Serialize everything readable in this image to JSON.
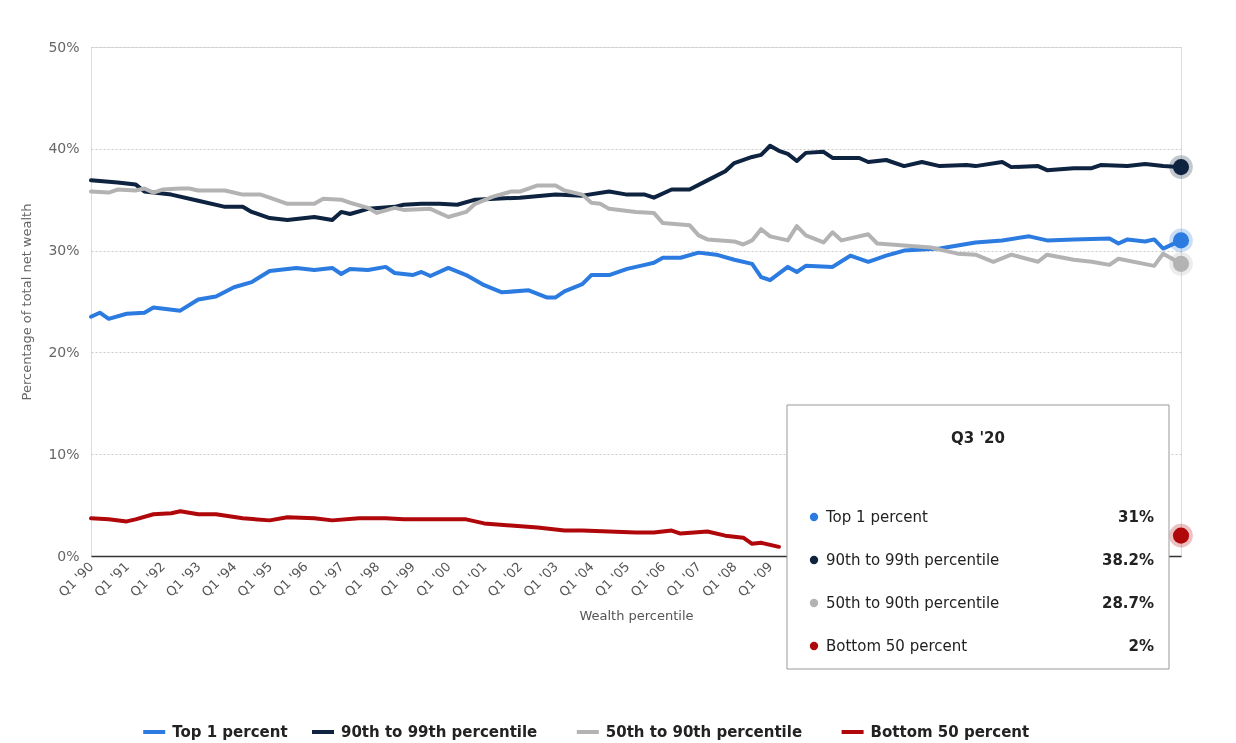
{
  "chart_data": {
    "type": "line",
    "xlabel": "Wealth percentile",
    "ylabel": "Percentage of total net wealth",
    "grid": "y",
    "legend": "bottom",
    "line_style": "solid",
    "xlim": [
      "1990-01",
      "2020-07"
    ],
    "xticks": [
      {
        "value": "1990-01",
        "label": "Q1 '90"
      },
      {
        "value": "1991-01",
        "label": "Q1 '91"
      },
      {
        "value": "1992-01",
        "label": "Q1 '92"
      },
      {
        "value": "1993-01",
        "label": "Q1 '93"
      },
      {
        "value": "1994-01",
        "label": "Q1 '94"
      },
      {
        "value": "1995-01",
        "label": "Q1 '95"
      },
      {
        "value": "1996-01",
        "label": "Q1 '96"
      },
      {
        "value": "1997-01",
        "label": "Q1 '97"
      },
      {
        "value": "1998-01",
        "label": "Q1 '98"
      },
      {
        "value": "1999-01",
        "label": "Q1 '99"
      },
      {
        "value": "2000-01",
        "label": "Q1 '00"
      },
      {
        "value": "2001-01",
        "label": "Q1 '01"
      },
      {
        "value": "2002-01",
        "label": "Q1 '02"
      },
      {
        "value": "2003-01",
        "label": "Q1 '03"
      },
      {
        "value": "2004-01",
        "label": "Q1 '04"
      },
      {
        "value": "2005-01",
        "label": "Q1 '05"
      },
      {
        "value": "2006-01",
        "label": "Q1 '06"
      },
      {
        "value": "2007-01",
        "label": "Q1 '07"
      },
      {
        "value": "2008-01",
        "label": "Q1 '08"
      },
      {
        "value": "2009-01",
        "label": "Q1 '09"
      }
    ],
    "ylim": [
      0,
      50
    ],
    "yticks": [
      {
        "value": 0,
        "label": "0%"
      },
      {
        "value": 10,
        "label": "10%"
      },
      {
        "value": 20,
        "label": "20%"
      },
      {
        "value": 30,
        "label": "30%"
      },
      {
        "value": 40,
        "label": "40%"
      },
      {
        "value": 50,
        "label": "50%"
      }
    ],
    "series": [
      {
        "name": "Top 1 percent",
        "color": "#2b7be0",
        "x": [
          "1990-01",
          "1990-04",
          "1990-07",
          "1991-01",
          "1991-07",
          "1991-10",
          "1992-07",
          "1993-01",
          "1993-07",
          "1994-01",
          "1994-07",
          "1995-01",
          "1995-04",
          "1995-10",
          "1996-04",
          "1996-10",
          "1997-01",
          "1997-04",
          "1997-10",
          "1998-04",
          "1998-07",
          "1999-01",
          "1999-04",
          "1999-07",
          "2000-01",
          "2000-07",
          "2001-01",
          "2001-07",
          "2002-04",
          "2002-10",
          "2003-01",
          "2003-04",
          "2003-10",
          "2004-01",
          "2004-07",
          "2005-01",
          "2005-07",
          "2005-10",
          "2006-01",
          "2006-07",
          "2007-01",
          "2007-07",
          "2008-01",
          "2008-07",
          "2008-10",
          "2009-01",
          "2009-07",
          "2009-10",
          "2010-01",
          "2010-10",
          "2011-04",
          "2011-10",
          "2012-04",
          "2012-10",
          "2013-10",
          "2014-10",
          "2015-07",
          "2016-04",
          "2016-10",
          "2017-07",
          "2018-07",
          "2018-10",
          "2019-01",
          "2019-07",
          "2019-10",
          "2020-01",
          "2020-07"
        ],
        "values": [
          23.5,
          23.9,
          23.3,
          23.8,
          23.9,
          24.4,
          24.1,
          25.2,
          25.5,
          26.4,
          26.9,
          28.0,
          28.1,
          28.3,
          28.1,
          28.3,
          27.7,
          28.2,
          28.1,
          28.4,
          27.8,
          27.6,
          27.9,
          27.5,
          28.3,
          27.6,
          26.6,
          25.9,
          26.1,
          25.4,
          25.4,
          26.0,
          26.7,
          27.6,
          27.6,
          28.2,
          28.6,
          28.8,
          29.3,
          29.3,
          29.8,
          29.6,
          29.1,
          28.7,
          27.4,
          27.1,
          28.4,
          27.9,
          28.5,
          28.4,
          29.5,
          28.9,
          29.5,
          30.0,
          30.2,
          30.8,
          31.0,
          31.4,
          31.0,
          31.1,
          31.2,
          30.7,
          31.1,
          30.9,
          31.1,
          30.2,
          31.0
        ]
      },
      {
        "name": "90th to 99th percentile",
        "color": "#0e2340",
        "x": [
          "1990-01",
          "1990-10",
          "1991-04",
          "1991-07",
          "1992-04",
          "1993-01",
          "1993-10",
          "1994-04",
          "1994-07",
          "1995-01",
          "1995-07",
          "1996-04",
          "1996-10",
          "1997-01",
          "1997-04",
          "1997-10",
          "1998-07",
          "1998-10",
          "1999-04",
          "1999-10",
          "2000-04",
          "2000-10",
          "2002-01",
          "2003-01",
          "2003-10",
          "2004-07",
          "2005-01",
          "2005-07",
          "2005-10",
          "2006-04",
          "2006-10",
          "2007-04",
          "2007-10",
          "2008-01",
          "2008-07",
          "2008-10",
          "2009-01",
          "2009-04",
          "2009-07",
          "2009-10",
          "2010-01",
          "2010-07",
          "2010-10",
          "2011-07",
          "2011-10",
          "2012-04",
          "2012-10",
          "2013-04",
          "2013-10",
          "2014-07",
          "2014-10",
          "2015-07",
          "2015-10",
          "2016-07",
          "2016-10",
          "2017-07",
          "2018-01",
          "2018-04",
          "2019-01",
          "2019-07",
          "2020-01",
          "2020-07"
        ],
        "values": [
          36.9,
          36.7,
          36.5,
          35.8,
          35.5,
          34.9,
          34.3,
          34.3,
          33.8,
          33.2,
          33.0,
          33.3,
          33.0,
          33.8,
          33.6,
          34.1,
          34.3,
          34.5,
          34.6,
          34.6,
          34.5,
          35.0,
          35.2,
          35.5,
          35.4,
          35.8,
          35.5,
          35.5,
          35.2,
          36.0,
          36.0,
          36.9,
          37.8,
          38.6,
          39.2,
          39.4,
          40.3,
          39.8,
          39.5,
          38.8,
          39.6,
          39.7,
          39.1,
          39.1,
          38.7,
          38.9,
          38.3,
          38.7,
          38.3,
          38.4,
          38.3,
          38.7,
          38.2,
          38.3,
          37.9,
          38.1,
          38.1,
          38.4,
          38.3,
          38.5,
          38.3,
          38.2
        ]
      },
      {
        "name": "50th to 90th percentile",
        "color": "#b3b3b3",
        "x": [
          "1990-01",
          "1990-07",
          "1990-10",
          "1991-04",
          "1991-07",
          "1991-10",
          "1992-01",
          "1992-07",
          "1992-10",
          "1993-01",
          "1993-10",
          "1994-04",
          "1994-10",
          "1995-01",
          "1995-07",
          "1996-04",
          "1996-07",
          "1997-01",
          "1997-04",
          "1997-10",
          "1998-01",
          "1998-07",
          "1998-10",
          "1999-07",
          "2000-01",
          "2000-07",
          "2000-10",
          "2001-04",
          "2001-10",
          "2002-01",
          "2002-07",
          "2003-01",
          "2003-04",
          "2003-10",
          "2004-01",
          "2004-04",
          "2004-07",
          "2005-04",
          "2005-10",
          "2006-01",
          "2006-10",
          "2007-01",
          "2007-04",
          "2008-01",
          "2008-04",
          "2008-07",
          "2008-10",
          "2009-01",
          "2009-07",
          "2009-10",
          "2010-01",
          "2010-07",
          "2010-10",
          "2011-01",
          "2011-10",
          "2012-01",
          "2012-10",
          "2013-07",
          "2014-04",
          "2014-10",
          "2015-04",
          "2015-10",
          "2016-07",
          "2016-10",
          "2017-07",
          "2018-01",
          "2018-07",
          "2018-10",
          "2019-10",
          "2020-01",
          "2020-07"
        ],
        "values": [
          35.8,
          35.7,
          36.0,
          35.9,
          36.1,
          35.7,
          36.0,
          36.1,
          36.1,
          35.9,
          35.9,
          35.5,
          35.5,
          35.2,
          34.6,
          34.6,
          35.1,
          35.0,
          34.7,
          34.2,
          33.7,
          34.2,
          34.0,
          34.1,
          33.3,
          33.8,
          34.6,
          35.3,
          35.8,
          35.8,
          36.4,
          36.4,
          35.9,
          35.5,
          34.7,
          34.6,
          34.1,
          33.8,
          33.7,
          32.7,
          32.5,
          31.5,
          31.1,
          30.9,
          30.6,
          31.0,
          32.1,
          31.4,
          31.0,
          32.4,
          31.5,
          30.8,
          31.8,
          31.0,
          31.6,
          30.7,
          30.5,
          30.3,
          29.7,
          29.6,
          28.9,
          29.6,
          28.9,
          29.6,
          29.1,
          28.9,
          28.6,
          29.2,
          28.5,
          29.7,
          28.7
        ]
      },
      {
        "name": "Bottom 50 percent",
        "color": "#b0070a",
        "x": [
          "1990-01",
          "1990-07",
          "1991-01",
          "1991-04",
          "1991-10",
          "1992-04",
          "1992-07",
          "1993-01",
          "1993-07",
          "1994-04",
          "1995-01",
          "1995-07",
          "1996-04",
          "1996-10",
          "1997-07",
          "1998-04",
          "1998-10",
          "2000-07",
          "2001-01",
          "2001-10",
          "2002-07",
          "2003-04",
          "2003-10",
          "2004-07",
          "2005-04",
          "2005-10",
          "2006-04",
          "2006-07",
          "2007-04",
          "2007-10",
          "2008-04",
          "2008-07",
          "2008-10",
          "2009-04",
          "2015-01",
          "2020-07"
        ],
        "values": [
          3.7,
          3.6,
          3.4,
          3.6,
          4.1,
          4.2,
          4.4,
          4.1,
          4.1,
          3.7,
          3.5,
          3.8,
          3.7,
          3.5,
          3.7,
          3.7,
          3.6,
          3.6,
          3.2,
          3.0,
          2.8,
          2.5,
          2.5,
          2.4,
          2.3,
          2.3,
          2.5,
          2.2,
          2.4,
          2.0,
          1.8,
          1.2,
          1.3,
          0.9,
          null,
          2
        ]
      }
    ],
    "annotations": [
      "Q3 '20",
      "31%",
      "38.2%",
      "28.7%",
      "2%"
    ]
  }
}
